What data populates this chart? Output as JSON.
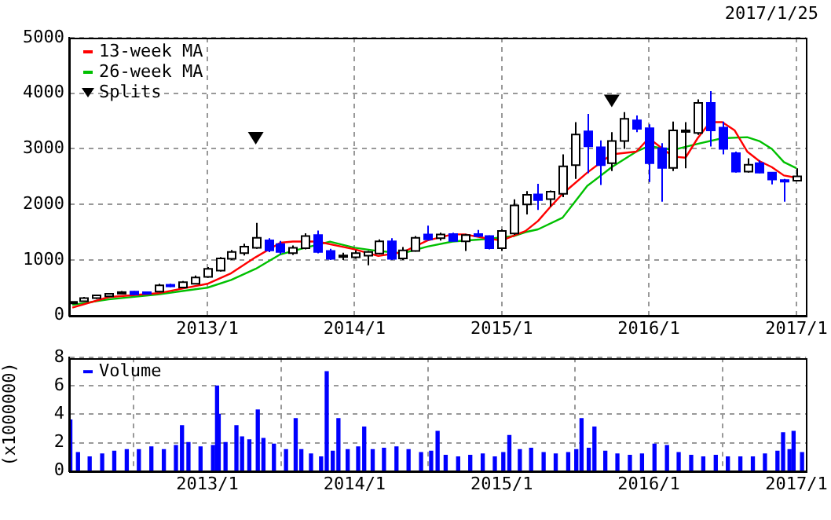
{
  "chart_data": [
    {
      "type": "candlestick",
      "annotations": [
        "2017/1/25"
      ],
      "x": [
        "2012-02",
        "2012-03",
        "2012-04",
        "2012-05",
        "2012-06",
        "2012-07",
        "2012-08",
        "2012-09",
        "2012-10",
        "2012-11",
        "2012-12",
        "2013-01",
        "2013-02",
        "2013-03",
        "2013-04",
        "2013-05",
        "2013-06",
        "2013-07",
        "2013-08",
        "2013-09",
        "2013-10",
        "2013-11",
        "2013-12",
        "2014-01",
        "2014-02",
        "2014-03",
        "2014-04",
        "2014-05",
        "2014-06",
        "2014-07",
        "2014-08",
        "2014-09",
        "2014-10",
        "2014-11",
        "2014-12",
        "2015-01",
        "2015-02",
        "2015-03",
        "2015-04",
        "2015-05",
        "2015-06",
        "2015-07",
        "2015-08",
        "2015-09",
        "2015-10",
        "2015-11",
        "2015-12",
        "2016-01",
        "2016-02",
        "2016-03",
        "2016-04",
        "2016-05",
        "2016-06",
        "2016-07",
        "2016-08",
        "2016-09",
        "2016-10",
        "2016-11",
        "2016-12",
        "2017-01"
      ],
      "ohlc": [
        [
          230,
          250,
          220,
          245
        ],
        [
          257,
          333,
          250,
          314
        ],
        [
          314,
          370,
          300,
          362
        ],
        [
          343,
          400,
          330,
          390
        ],
        [
          410,
          440,
          390,
          420
        ],
        [
          428,
          440,
          370,
          381
        ],
        [
          419,
          430,
          380,
          390
        ],
        [
          428,
          570,
          420,
          543
        ],
        [
          552,
          570,
          510,
          530
        ],
        [
          505,
          620,
          490,
          600
        ],
        [
          571,
          720,
          560,
          685
        ],
        [
          695,
          870,
          680,
          838
        ],
        [
          809,
          1050,
          790,
          1028
        ],
        [
          1019,
          1180,
          1000,
          1142
        ],
        [
          1123,
          1290,
          1080,
          1238
        ],
        [
          1219,
          1666,
          1200,
          1399
        ],
        [
          1352,
          1390,
          1140,
          1171
        ],
        [
          1285,
          1340,
          1100,
          1142
        ],
        [
          1123,
          1260,
          1090,
          1219
        ],
        [
          1209,
          1480,
          1190,
          1428
        ],
        [
          1447,
          1530,
          1120,
          1142
        ],
        [
          1161,
          1200,
          1000,
          1019
        ],
        [
          1070,
          1130,
          1000,
          1080
        ],
        [
          1047,
          1170,
          1020,
          1123
        ],
        [
          1076,
          1160,
          904,
          1142
        ],
        [
          1114,
          1370,
          1100,
          1333
        ],
        [
          1333,
          1390,
          1000,
          1019
        ],
        [
          1028,
          1230,
          1000,
          1171
        ],
        [
          1161,
          1430,
          1150,
          1399
        ],
        [
          1457,
          1618,
          1350,
          1371
        ],
        [
          1390,
          1490,
          1350,
          1457
        ],
        [
          1466,
          1490,
          1330,
          1342
        ],
        [
          1333,
          1470,
          1161,
          1447
        ],
        [
          1466,
          1540,
          1410,
          1428
        ],
        [
          1428,
          1440,
          1190,
          1209
        ],
        [
          1209,
          1550,
          1160,
          1523
        ],
        [
          1476,
          2090,
          1450,
          1980
        ],
        [
          2000,
          2240,
          1820,
          2171
        ],
        [
          2180,
          2370,
          1900,
          2075
        ],
        [
          2094,
          2250,
          1960,
          2228
        ],
        [
          2190,
          2900,
          2130,
          2685
        ],
        [
          2704,
          3480,
          2460,
          3256
        ],
        [
          3313,
          3630,
          2560,
          3046
        ],
        [
          3027,
          3150,
          2350,
          2704
        ],
        [
          2742,
          3300,
          2600,
          3142
        ],
        [
          3142,
          3660,
          3000,
          3541
        ],
        [
          3513,
          3600,
          3300,
          3360
        ],
        [
          3370,
          3440,
          2400,
          2742
        ],
        [
          3008,
          3100,
          2047,
          2656
        ],
        [
          2656,
          3490,
          2600,
          3332
        ],
        [
          3323,
          3480,
          2650,
          3332
        ],
        [
          3284,
          3890,
          3250,
          3827
        ],
        [
          3827,
          4040,
          3040,
          3332
        ],
        [
          3380,
          3490,
          2900,
          2999
        ],
        [
          2923,
          2950,
          2570,
          2590
        ],
        [
          2590,
          2830,
          2570,
          2713
        ],
        [
          2742,
          2790,
          2560,
          2570
        ],
        [
          2570,
          2580,
          2360,
          2447
        ],
        [
          2437,
          2460,
          2047,
          2420
        ],
        [
          2428,
          2650,
          2420,
          2504
        ]
      ],
      "colors": [
        "#ffffff",
        "#ffffff",
        "#ffffff",
        "#ffffff",
        "#ffffff",
        "#0000ff",
        "#0000ff",
        "#ffffff",
        "#0000ff",
        "#ffffff",
        "#ffffff",
        "#ffffff",
        "#ffffff",
        "#ffffff",
        "#ffffff",
        "#ffffff",
        "#0000ff",
        "#0000ff",
        "#ffffff",
        "#ffffff",
        "#0000ff",
        "#0000ff",
        "#ffffff",
        "#ffffff",
        "#ffffff",
        "#ffffff",
        "#0000ff",
        "#ffffff",
        "#ffffff",
        "#0000ff",
        "#ffffff",
        "#0000ff",
        "#ffffff",
        "#0000ff",
        "#0000ff",
        "#ffffff",
        "#ffffff",
        "#ffffff",
        "#0000ff",
        "#ffffff",
        "#ffffff",
        "#ffffff",
        "#0000ff",
        "#0000ff",
        "#ffffff",
        "#ffffff",
        "#0000ff",
        "#0000ff",
        "#0000ff",
        "#ffffff",
        "#ffffff",
        "#ffffff",
        "#0000ff",
        "#0000ff",
        "#0000ff",
        "#ffffff",
        "#0000ff",
        "#0000ff",
        "#0000ff",
        "#ffffff"
      ],
      "series": [
        {
          "name": "13-week MA",
          "type": "line",
          "color": "#ff0000",
          "x": [
            "2012-02",
            "2012-05",
            "2012-09",
            "2013-01",
            "2013-03",
            "2013-05",
            "2013-07",
            "2013-08",
            "2013-10",
            "2014-01",
            "2014-03",
            "2014-05",
            "2014-07",
            "2014-09",
            "2014-10",
            "2014-12",
            "2015-01",
            "2015-03",
            "2015-04",
            "2015-05",
            "2015-06",
            "2015-08",
            "2015-10",
            "2015-12",
            "2016-01",
            "2016-03",
            "2016-04",
            "2016-05",
            "2016-06",
            "2016-07",
            "2016-08",
            "2016-09",
            "2016-10",
            "2016-11",
            "2016-12",
            "2017-01"
          ],
          "values": [
            140,
            330,
            400,
            570,
            760,
            1050,
            1310,
            1330,
            1330,
            1190,
            1070,
            1140,
            1350,
            1460,
            1460,
            1380,
            1350,
            1520,
            1700,
            1950,
            2190,
            2570,
            2900,
            2950,
            3190,
            2860,
            2840,
            3190,
            3480,
            3480,
            3330,
            2950,
            2780,
            2670,
            2520,
            2480
          ]
        },
        {
          "name": "26-week MA",
          "type": "line",
          "color": "#00c000",
          "x": [
            "2012-02",
            "2012-05",
            "2012-09",
            "2013-01",
            "2013-03",
            "2013-05",
            "2013-07",
            "2013-09",
            "2013-11",
            "2014-01",
            "2014-03",
            "2014-05",
            "2014-07",
            "2014-09",
            "2014-12",
            "2015-02",
            "2015-03",
            "2015-04",
            "2015-06",
            "2015-08",
            "2015-10",
            "2015-12",
            "2016-01",
            "2016-03",
            "2016-05",
            "2016-07",
            "2016-09",
            "2016-10",
            "2016-11",
            "2016-12",
            "2017-01"
          ],
          "values": [
            190,
            290,
            380,
            500,
            640,
            840,
            1100,
            1220,
            1330,
            1220,
            1160,
            1120,
            1240,
            1330,
            1380,
            1430,
            1500,
            1550,
            1760,
            2330,
            2670,
            2950,
            3050,
            2980,
            3090,
            3190,
            3210,
            3140,
            3000,
            2760,
            2650
          ]
        },
        {
          "name": "Splits",
          "type": "scatter",
          "color": "#000000",
          "marker": "triangle",
          "x": [
            "2013-05",
            "2015-10"
          ],
          "values": [
            3190,
            3860
          ]
        }
      ],
      "xlim": [
        "2012-01-24",
        "2017-01-25"
      ],
      "xticks": [
        {
          "value": "2013-01",
          "label": "2013/1"
        },
        {
          "value": "2014-01",
          "label": "2014/1"
        },
        {
          "value": "2015-01",
          "label": "2015/1"
        },
        {
          "value": "2016-01",
          "label": "2016/1"
        },
        {
          "value": "2017-01",
          "label": "2017/1"
        }
      ],
      "ylim": [
        0,
        5000
      ],
      "yticks": [
        0,
        1000,
        2000,
        3000,
        4000,
        5000
      ],
      "grid": true,
      "legend": "top left"
    },
    {
      "type": "bar",
      "ylabel": "(x1000000)",
      "series": [
        {
          "name": "Volume",
          "color": "#0000ff",
          "x": [
            "2012-01-27",
            "2012-02-15",
            "2012-03-15",
            "2012-04-15",
            "2012-05-15",
            "2012-06-15",
            "2012-07-15",
            "2012-08-15",
            "2012-09-15",
            "2012-10-15",
            "2012-10-30",
            "2012-11-15",
            "2012-12-15",
            "2013-01-15",
            "2013-01-25",
            "2013-01-29",
            "2013-02-15",
            "2013-03-14",
            "2013-03-28",
            "2013-04-15",
            "2013-05-06",
            "2013-05-20",
            "2013-06-15",
            "2013-07-15",
            "2013-08-08",
            "2013-08-22",
            "2013-09-15",
            "2013-10-10",
            "2013-10-24",
            "2013-11-08",
            "2013-11-22",
            "2013-12-15",
            "2014-01-10",
            "2014-01-25",
            "2014-02-15",
            "2014-03-15",
            "2014-04-15",
            "2014-05-15",
            "2014-06-15",
            "2014-07-10",
            "2014-07-26",
            "2014-08-15",
            "2014-09-15",
            "2014-10-15",
            "2014-11-15",
            "2014-12-15",
            "2015-01-05",
            "2015-01-20",
            "2015-02-15",
            "2015-03-15",
            "2015-04-15",
            "2015-05-15",
            "2015-06-15",
            "2015-07-05",
            "2015-07-18",
            "2015-08-05",
            "2015-08-19",
            "2015-09-15",
            "2015-10-15",
            "2015-11-15",
            "2015-12-15",
            "2016-01-15",
            "2016-02-15",
            "2016-03-15",
            "2016-04-15",
            "2016-05-15",
            "2016-06-15",
            "2016-07-15",
            "2016-08-15",
            "2016-09-15",
            "2016-10-15",
            "2016-11-15",
            "2016-11-29",
            "2016-12-15",
            "2016-12-25",
            "2017-01-15"
          ],
          "values": [
            3.6,
            1.3,
            1.0,
            1.2,
            1.4,
            1.5,
            1.5,
            1.7,
            1.5,
            1.8,
            3.2,
            2.0,
            1.7,
            1.8,
            6.0,
            4.0,
            2.0,
            3.2,
            2.4,
            2.2,
            4.3,
            2.3,
            1.9,
            1.5,
            3.7,
            1.5,
            1.2,
            1.0,
            7.0,
            1.4,
            3.7,
            1.5,
            1.7,
            3.1,
            1.5,
            1.6,
            1.7,
            1.5,
            1.3,
            1.4,
            2.8,
            1.1,
            1.0,
            1.1,
            1.2,
            1.0,
            1.3,
            2.5,
            1.5,
            1.6,
            1.3,
            1.2,
            1.3,
            1.5,
            3.7,
            1.6,
            3.1,
            1.4,
            1.2,
            1.1,
            1.2,
            1.9,
            1.8,
            1.3,
            1.1,
            1.0,
            1.1,
            1.0,
            1.0,
            1.0,
            1.2,
            1.4,
            2.7,
            1.5,
            2.8,
            1.3
          ]
        }
      ],
      "xlim": [
        "2012-01-24",
        "2017-01-25"
      ],
      "xticks": [
        {
          "value": "2013-01",
          "label": "2013/1"
        },
        {
          "value": "2014-01",
          "label": "2014/1"
        },
        {
          "value": "2015-01",
          "label": "2015/1"
        },
        {
          "value": "2016-01",
          "label": "2016/1"
        },
        {
          "value": "2017-01",
          "label": "2017/1"
        }
      ],
      "ylim": [
        0,
        8
      ],
      "yticks": [
        0,
        2,
        4,
        6,
        8
      ],
      "grid": true,
      "legend": "top left"
    }
  ]
}
